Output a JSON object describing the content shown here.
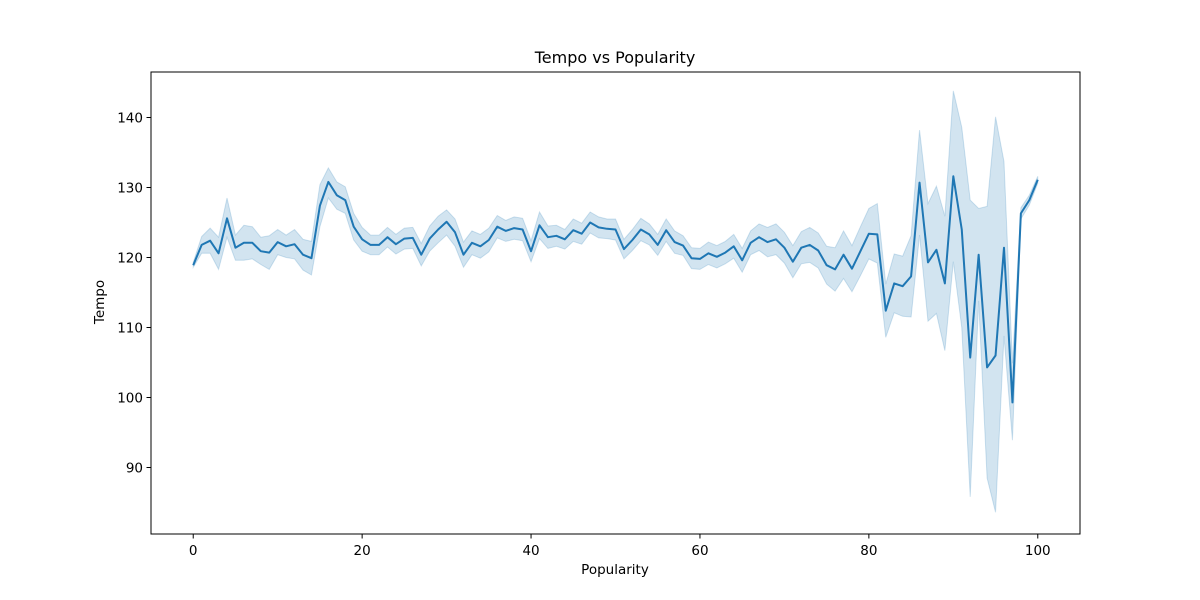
{
  "chart_data": {
    "type": "line",
    "title": "Tempo vs Popularity",
    "xlabel": "Popularity",
    "ylabel": "Tempo",
    "xlim": [
      -5,
      105
    ],
    "ylim": [
      80.5,
      146.5
    ],
    "xticks": [
      0,
      20,
      40,
      60,
      80,
      100
    ],
    "yticks": [
      90,
      100,
      110,
      120,
      130,
      140
    ],
    "grid": false,
    "legend": "none",
    "colors": {
      "line": "#1f77b4",
      "band": "#1f77b4",
      "band_opacity": 0.2
    },
    "series": [
      {
        "x": [
          0,
          1,
          2,
          3,
          4,
          5,
          6,
          7,
          8,
          9,
          10,
          11,
          12,
          13,
          14,
          15,
          16,
          17,
          18,
          19,
          20,
          21,
          22,
          23,
          24,
          25,
          26,
          27,
          28,
          29,
          30,
          31,
          32,
          33,
          34,
          35,
          36,
          37,
          38,
          39,
          40,
          41,
          42,
          43,
          44,
          45,
          46,
          47,
          48,
          49,
          50,
          51,
          52,
          53,
          54,
          55,
          56,
          57,
          58,
          59,
          60,
          61,
          62,
          63,
          64,
          65,
          66,
          67,
          68,
          69,
          70,
          71,
          72,
          73,
          74,
          75,
          76,
          77,
          78,
          79,
          80,
          81,
          82,
          83,
          84,
          85,
          86,
          87,
          88,
          89,
          90,
          91,
          92,
          93,
          94,
          95,
          96,
          97,
          98,
          99,
          100
        ],
        "y": [
          118.9,
          121.8,
          122.4,
          120.6,
          125.6,
          121.4,
          122.1,
          122.1,
          120.9,
          120.7,
          122.2,
          121.6,
          121.9,
          120.4,
          119.9,
          127.4,
          130.8,
          128.9,
          128.2,
          124.4,
          122.6,
          121.8,
          121.8,
          122.9,
          121.9,
          122.7,
          122.8,
          120.4,
          122.7,
          124.0,
          125.1,
          123.6,
          120.4,
          122.1,
          121.6,
          122.5,
          124.4,
          123.8,
          124.2,
          124.0,
          120.9,
          124.6,
          122.9,
          123.1,
          122.6,
          123.9,
          123.4,
          125.0,
          124.3,
          124.1,
          124.0,
          121.2,
          122.5,
          124.0,
          123.3,
          121.8,
          123.9,
          122.2,
          121.7,
          119.9,
          119.8,
          120.6,
          120.1,
          120.7,
          121.6,
          119.6,
          122.1,
          122.9,
          122.2,
          122.6,
          121.4,
          119.4,
          121.4,
          121.8,
          121.0,
          118.9,
          118.3,
          120.4,
          118.4,
          120.9,
          123.4,
          123.3,
          112.4,
          116.3,
          115.9,
          117.3,
          130.7,
          119.3,
          121.1,
          116.3,
          131.6,
          124.0,
          105.7,
          120.4,
          104.3,
          106.0,
          121.4,
          99.3,
          126.3,
          128.2,
          131.1
        ],
        "lower": [
          118.6,
          120.6,
          120.6,
          118.3,
          122.9,
          119.6,
          119.6,
          119.8,
          119.0,
          118.3,
          120.4,
          120.0,
          119.8,
          118.2,
          117.5,
          124.4,
          128.5,
          126.9,
          126.3,
          122.5,
          120.9,
          120.4,
          120.4,
          121.5,
          120.5,
          121.2,
          121.3,
          118.8,
          120.9,
          122.1,
          123.2,
          121.6,
          118.6,
          120.4,
          119.9,
          120.8,
          122.8,
          122.3,
          122.6,
          122.4,
          119.4,
          122.7,
          121.3,
          121.6,
          121.2,
          122.3,
          121.9,
          123.5,
          122.8,
          122.7,
          122.5,
          119.8,
          121.0,
          122.4,
          121.8,
          120.3,
          122.3,
          120.6,
          120.3,
          118.4,
          118.3,
          119.0,
          118.5,
          119.1,
          119.9,
          117.9,
          120.4,
          121.0,
          120.1,
          120.4,
          119.2,
          117.1,
          119.1,
          119.3,
          118.5,
          116.2,
          115.2,
          117.0,
          115.1,
          117.4,
          119.8,
          119.2,
          108.6,
          112.1,
          111.6,
          111.5,
          123.2,
          110.9,
          112.0,
          106.7,
          119.4,
          110.0,
          85.8,
          113.8,
          88.5,
          83.6,
          108.8,
          93.9,
          125.5,
          127.5,
          130.6
        ],
        "upper": [
          119.3,
          123.0,
          124.2,
          122.9,
          128.5,
          123.2,
          124.6,
          124.4,
          122.9,
          123.1,
          124.0,
          123.2,
          124.0,
          122.6,
          122.3,
          130.4,
          132.8,
          130.8,
          130.1,
          126.3,
          124.3,
          123.2,
          123.2,
          124.3,
          123.3,
          124.2,
          124.3,
          122.0,
          124.5,
          125.9,
          126.8,
          125.5,
          122.2,
          123.8,
          123.3,
          124.2,
          126.0,
          125.3,
          125.8,
          125.6,
          122.4,
          126.5,
          124.5,
          124.6,
          124.0,
          125.5,
          124.9,
          126.5,
          125.8,
          125.5,
          125.5,
          122.6,
          124.0,
          125.6,
          124.8,
          123.3,
          125.5,
          123.8,
          123.1,
          121.4,
          121.3,
          122.2,
          121.7,
          122.3,
          123.3,
          121.3,
          123.8,
          124.8,
          124.3,
          124.8,
          123.6,
          121.7,
          123.7,
          124.3,
          123.5,
          121.6,
          121.4,
          123.8,
          121.7,
          124.4,
          127.0,
          127.7,
          116.2,
          120.5,
          120.2,
          123.1,
          138.2,
          127.7,
          130.2,
          125.9,
          143.8,
          138.6,
          128.2,
          127.0,
          127.3,
          140.1,
          133.7,
          104.9,
          127.1,
          128.9,
          131.6
        ]
      }
    ]
  }
}
